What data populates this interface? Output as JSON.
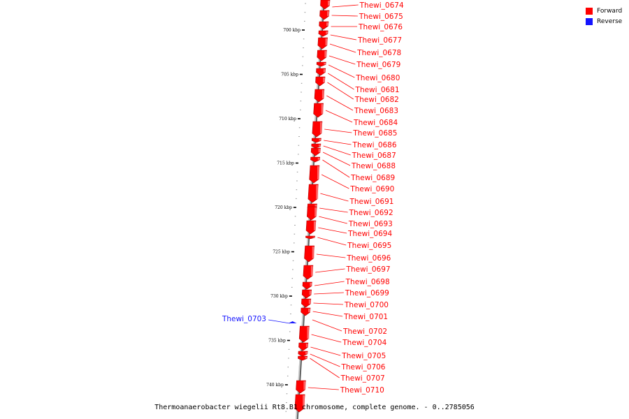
{
  "legend": [
    {
      "label": "Forward",
      "color": "#ff0000"
    },
    {
      "label": "Reverse",
      "color": "#1414ff"
    }
  ],
  "caption": "Thermoanaerobacter wiegelii Rt8.B1 chromosome, complete genome. - 0..2785056",
  "scale_labels": [
    "700 kbp",
    "705 kbp",
    "710 kbp",
    "715 kbp",
    "720 kbp",
    "725 kbp",
    "730 kbp",
    "735 kbp",
    "740 kbp"
  ],
  "colors": {
    "forward": "#ff0000",
    "reverse": "#1414ff",
    "backbone": "#888888"
  },
  "genes": [
    {
      "name": "Thewi_0674",
      "strand": "forward"
    },
    {
      "name": "Thewi_0675",
      "strand": "forward"
    },
    {
      "name": "Thewi_0676",
      "strand": "forward"
    },
    {
      "name": "Thewi_0677",
      "strand": "forward"
    },
    {
      "name": "Thewi_0678",
      "strand": "forward"
    },
    {
      "name": "Thewi_0679",
      "strand": "forward"
    },
    {
      "name": "Thewi_0680",
      "strand": "forward"
    },
    {
      "name": "Thewi_0681",
      "strand": "forward"
    },
    {
      "name": "Thewi_0682",
      "strand": "forward"
    },
    {
      "name": "Thewi_0683",
      "strand": "forward"
    },
    {
      "name": "Thewi_0684",
      "strand": "forward"
    },
    {
      "name": "Thewi_0685",
      "strand": "forward"
    },
    {
      "name": "Thewi_0686",
      "strand": "forward"
    },
    {
      "name": "Thewi_0687",
      "strand": "forward"
    },
    {
      "name": "Thewi_0688",
      "strand": "forward"
    },
    {
      "name": "Thewi_0689",
      "strand": "forward"
    },
    {
      "name": "Thewi_0690",
      "strand": "forward"
    },
    {
      "name": "Thewi_0691",
      "strand": "forward"
    },
    {
      "name": "Thewi_0692",
      "strand": "forward"
    },
    {
      "name": "Thewi_0693",
      "strand": "forward"
    },
    {
      "name": "Thewi_0694",
      "strand": "forward"
    },
    {
      "name": "Thewi_0695",
      "strand": "forward"
    },
    {
      "name": "Thewi_0696",
      "strand": "forward"
    },
    {
      "name": "Thewi_0697",
      "strand": "forward"
    },
    {
      "name": "Thewi_0698",
      "strand": "forward"
    },
    {
      "name": "Thewi_0699",
      "strand": "forward"
    },
    {
      "name": "Thewi_0700",
      "strand": "forward"
    },
    {
      "name": "Thewi_0701",
      "strand": "forward"
    },
    {
      "name": "Thewi_0702",
      "strand": "forward"
    },
    {
      "name": "Thewi_0704",
      "strand": "forward"
    },
    {
      "name": "Thewi_0705",
      "strand": "forward"
    },
    {
      "name": "Thewi_0706",
      "strand": "forward"
    },
    {
      "name": "Thewi_0707",
      "strand": "forward"
    },
    {
      "name": "Thewi_0710",
      "strand": "forward"
    },
    {
      "name": "Thewi_0703",
      "strand": "reverse"
    }
  ]
}
